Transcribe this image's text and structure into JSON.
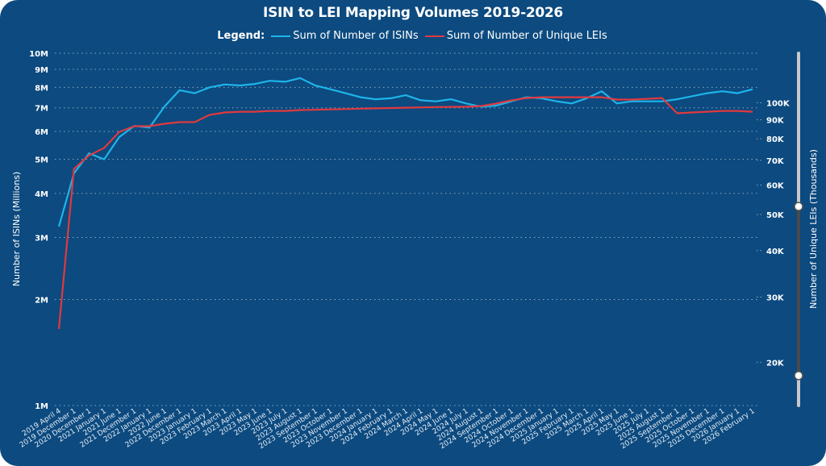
{
  "chart_data": {
    "type": "line",
    "title": "ISIN to LEI Mapping Volumes 2019-2026",
    "legend_label": "Legend:",
    "legend_position": "top",
    "grid": true,
    "categories": [
      "2019 April 4",
      "2019 December 1",
      "2020 December 1",
      "2021 January 1",
      "2021 June 1",
      "2021 December 1",
      "2022 January 1",
      "2022 June 1",
      "2022 December 1",
      "2023 January 1",
      "2023 February 1",
      "2023 March 1",
      "2023 April 1",
      "2023 May 1",
      "2023 June 1",
      "2023 July 1",
      "2023 August 1",
      "2023 September 1",
      "2023 October 1",
      "2023 November 1",
      "2023 December 1",
      "2024 January 1",
      "2024 February 1",
      "2024 March 1",
      "2024 April 1",
      "2024 May 1",
      "2024 June 1",
      "2024 July 1",
      "2024 August 1",
      "2024 September 1",
      "2024 October 1",
      "2024 November 1",
      "2024 December 1",
      "2025 January 1",
      "2025 February 1",
      "2025 March 1",
      "2025 April 1",
      "2025 May 1",
      "2025 June 1",
      "2025 July 1",
      "2025 August 1",
      "2025 September 1",
      "2025 October 1",
      "2025 November 1",
      "2025 December 1",
      "2026 January 1",
      "2026 February 1"
    ],
    "y_left": {
      "label": "Number of ISINs (Millions)",
      "scale": "log",
      "range": [
        1000000,
        10000000
      ],
      "ticks": [
        {
          "v": 1000000,
          "t": "1M"
        },
        {
          "v": 2000000,
          "t": "2M"
        },
        {
          "v": 3000000,
          "t": "3M"
        },
        {
          "v": 4000000,
          "t": "4M"
        },
        {
          "v": 5000000,
          "t": "5M"
        },
        {
          "v": 6000000,
          "t": "6M"
        },
        {
          "v": 7000000,
          "t": "7M"
        },
        {
          "v": 8000000,
          "t": "8M"
        },
        {
          "v": 9000000,
          "t": "9M"
        },
        {
          "v": 10000000,
          "t": "10M"
        }
      ]
    },
    "y_right": {
      "label": "Number of Unique LEIs (Thousands)",
      "scale": "log",
      "range": [
        15300,
        136000
      ],
      "ticks": [
        {
          "v": 20000,
          "t": "20K"
        },
        {
          "v": 30000,
          "t": "30K"
        },
        {
          "v": 40000,
          "t": "40K"
        },
        {
          "v": 50000,
          "t": "50K"
        },
        {
          "v": 60000,
          "t": "60K"
        },
        {
          "v": 70000,
          "t": "70K"
        },
        {
          "v": 80000,
          "t": "80K"
        },
        {
          "v": 90000,
          "t": "90K"
        },
        {
          "v": 100000,
          "t": "100K"
        }
      ]
    },
    "series": [
      {
        "name": "Sum of Number of ISINs",
        "axis": "left",
        "color": "#1eb4ea",
        "values": [
          3220000,
          4560000,
          5200000,
          5000000,
          5780000,
          6220000,
          6150000,
          7060000,
          7850000,
          7700000,
          8000000,
          8150000,
          8100000,
          8180000,
          8350000,
          8300000,
          8500000,
          8100000,
          7900000,
          7700000,
          7500000,
          7400000,
          7450000,
          7600000,
          7350000,
          7300000,
          7400000,
          7200000,
          7050000,
          7100000,
          7300000,
          7500000,
          7450000,
          7300000,
          7200000,
          7450000,
          7800000,
          7200000,
          7300000,
          7300000,
          7300000,
          7400000,
          7550000,
          7700000,
          7800000,
          7700000,
          7900000
        ]
      },
      {
        "name": "Sum of Number of Unique LEIs",
        "axis": "right",
        "color": "#e0393e",
        "values": [
          24600,
          66400,
          72200,
          75600,
          83500,
          86500,
          86500,
          87800,
          88700,
          88700,
          92800,
          94200,
          94600,
          94600,
          95100,
          95100,
          95600,
          95800,
          96000,
          96200,
          96400,
          96600,
          96800,
          97000,
          97200,
          97400,
          97500,
          97600,
          98000,
          99500,
          101500,
          103000,
          103500,
          103500,
          103500,
          103500,
          103500,
          102000,
          102000,
          102500,
          103000,
          93700,
          94200,
          94600,
          95100,
          95100,
          94600
        ]
      }
    ]
  },
  "range_slider": {
    "lower_fraction": 0.085,
    "upper_fraction": 0.565,
    "track_color": "#c8c8c8",
    "selected_color": "#4a4a4a"
  }
}
